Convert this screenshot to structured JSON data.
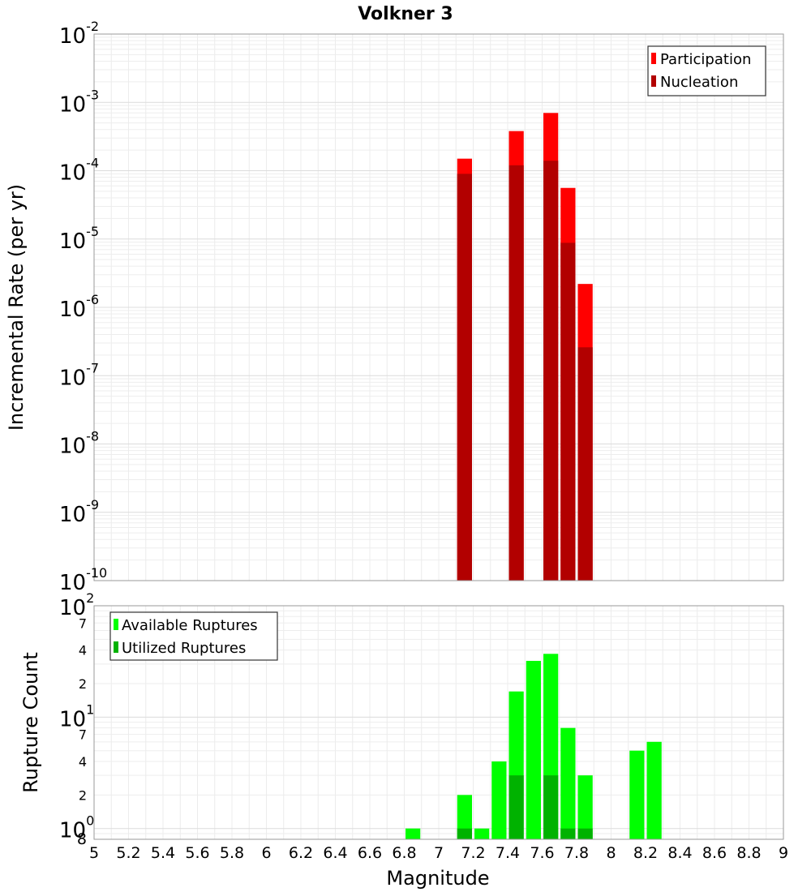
{
  "chart_data": [
    {
      "type": "bar",
      "title": "Volkner 3",
      "ylabel": "Incremental Rate (per yr)",
      "xlabel": "",
      "y_scale": "log",
      "ylim": [
        1e-10,
        0.01
      ],
      "xlim": [
        5,
        9
      ],
      "grid": true,
      "legend_position": "top-right",
      "y_tick_labels": [
        {
          "base": "10",
          "exp": "-2"
        },
        {
          "base": "10",
          "exp": "-3"
        },
        {
          "base": "10",
          "exp": "-4"
        },
        {
          "base": "10",
          "exp": "-5"
        },
        {
          "base": "10",
          "exp": "-6"
        },
        {
          "base": "10",
          "exp": "-7"
        },
        {
          "base": "10",
          "exp": "-8"
        },
        {
          "base": "10",
          "exp": "-9"
        },
        {
          "base": "10",
          "exp": "-10"
        }
      ],
      "series": [
        {
          "name": "Participation",
          "color": "#ff0000",
          "points": [
            {
              "x": 7.15,
              "y": 0.00015
            },
            {
              "x": 7.45,
              "y": 0.00038
            },
            {
              "x": 7.65,
              "y": 0.0007
            },
            {
              "x": 7.75,
              "y": 5.6e-05
            },
            {
              "x": 7.85,
              "y": 2.2e-06
            }
          ]
        },
        {
          "name": "Nucleation",
          "color": "#b20000",
          "points": [
            {
              "x": 7.15,
              "y": 9e-05
            },
            {
              "x": 7.45,
              "y": 0.00012
            },
            {
              "x": 7.65,
              "y": 0.00014
            },
            {
              "x": 7.75,
              "y": 8.8e-06
            },
            {
              "x": 7.85,
              "y": 2.6e-07
            }
          ]
        }
      ]
    },
    {
      "type": "bar",
      "title": "",
      "ylabel": "Rupture Count",
      "xlabel": "Magnitude",
      "y_scale": "log",
      "ylim": [
        0.8,
        100
      ],
      "xlim": [
        5,
        9
      ],
      "grid": true,
      "legend_position": "top-left",
      "y_tick_labels": [
        {
          "base": "10",
          "exp": "2"
        },
        {
          "base": "10",
          "exp": "1"
        },
        {
          "base": "10",
          "exp": "0"
        }
      ],
      "y_minor_labels": [
        "7",
        "4",
        "2",
        "7",
        "4",
        "2",
        "8"
      ],
      "x_tick_labels": [
        "5",
        "5.2",
        "5.4",
        "5.6",
        "5.8",
        "6",
        "6.2",
        "6.4",
        "6.6",
        "6.8",
        "7",
        "7.2",
        "7.4",
        "7.6",
        "7.8",
        "8",
        "8.2",
        "8.4",
        "8.6",
        "8.8",
        "9"
      ],
      "series": [
        {
          "name": "Available Ruptures",
          "color": "#00ff00",
          "points": [
            {
              "x": 6.85,
              "y": 1
            },
            {
              "x": 7.15,
              "y": 2
            },
            {
              "x": 7.25,
              "y": 1
            },
            {
              "x": 7.35,
              "y": 4
            },
            {
              "x": 7.45,
              "y": 17
            },
            {
              "x": 7.55,
              "y": 32
            },
            {
              "x": 7.65,
              "y": 37
            },
            {
              "x": 7.75,
              "y": 8
            },
            {
              "x": 7.85,
              "y": 3
            },
            {
              "x": 8.15,
              "y": 5
            },
            {
              "x": 8.25,
              "y": 6
            }
          ]
        },
        {
          "name": "Utilized Ruptures",
          "color": "#00b200",
          "points": [
            {
              "x": 7.15,
              "y": 1
            },
            {
              "x": 7.45,
              "y": 3
            },
            {
              "x": 7.65,
              "y": 3
            },
            {
              "x": 7.75,
              "y": 1
            },
            {
              "x": 7.85,
              "y": 1
            }
          ]
        }
      ]
    }
  ]
}
